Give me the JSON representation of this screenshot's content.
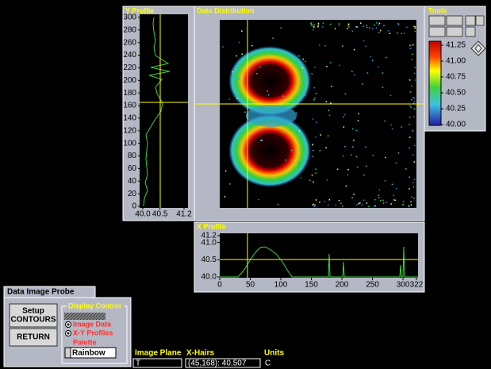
{
  "panels": {
    "y_profile": {
      "title": "Y Profile",
      "y_ticks": [
        "0",
        "20",
        "40",
        "60",
        "80",
        "100",
        "120",
        "140",
        "160",
        "180",
        "200",
        "220",
        "240",
        "260",
        "280",
        "300"
      ],
      "x_ticks": [
        "40.0",
        "40.5",
        "41.2"
      ]
    },
    "data_distribution": {
      "title": "Data Distribution"
    },
    "tools": {
      "title": "Tools",
      "scale_labels": [
        "41.25",
        "41.00",
        "40.75",
        "40.50",
        "40.25",
        "40.00"
      ]
    },
    "x_profile": {
      "title": "X Profile",
      "y_ticks": [
        "40.0",
        "40.5",
        "41.0",
        "41.2"
      ],
      "x_ticks": [
        "0",
        "50",
        "100",
        "150",
        "200",
        "250",
        "300",
        "322"
      ]
    }
  },
  "probe": {
    "title": "Data Image Probe",
    "buttons": [
      [
        "Setup",
        "CONTOURS"
      ],
      [
        "RETURN"
      ]
    ],
    "display_control": {
      "title": "Display Control",
      "options": [
        "Image Data",
        "X-Y Profiles"
      ],
      "palette_label": "Palette",
      "palette_value": "Rainbow"
    }
  },
  "status": {
    "image_plane": {
      "label": "Image Plane",
      "value": "T"
    },
    "x_hairs": {
      "label": "X-Hairs",
      "value": "(45,168): 40.507"
    },
    "units": {
      "label": "Units",
      "value": "C"
    }
  }
}
